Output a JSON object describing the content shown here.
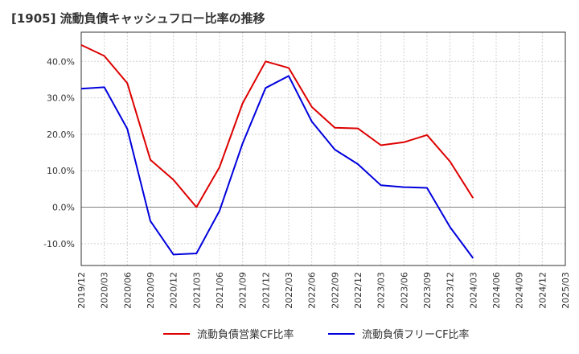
{
  "chart_data": {
    "type": "line",
    "title": "[1905]  流動負債キャッシュフロー比率の推移",
    "xlabel": "",
    "ylabel": "",
    "x": [
      "2019/12",
      "2020/03",
      "2020/06",
      "2020/09",
      "2020/12",
      "2021/03",
      "2021/06",
      "2021/09",
      "2021/12",
      "2022/03",
      "2022/06",
      "2022/09",
      "2022/12",
      "2023/03",
      "2023/06",
      "2023/09",
      "2023/12",
      "2024/03",
      "2024/06",
      "2024/09",
      "2024/12",
      "2025/03"
    ],
    "ylim": [
      -16,
      48
    ],
    "yticks": [
      -10,
      0,
      10,
      20,
      30,
      40
    ],
    "ytick_labels": [
      "-10.0%",
      "0.0%",
      "10.0%",
      "20.0%",
      "30.0%",
      "40.0%"
    ],
    "grid": true,
    "legend_position": "bottom",
    "series": [
      {
        "name": "流動負債営業CF比率",
        "color": "#dd0000",
        "values": [
          44.5,
          41.5,
          34.0,
          13.0,
          7.5,
          0.0,
          11.0,
          28.5,
          40.0,
          38.2,
          27.5,
          21.8,
          21.6,
          17.0,
          17.8,
          19.8,
          12.5,
          2.5,
          null,
          null,
          null,
          null
        ]
      },
      {
        "name": "流動負債フリーCF比率",
        "color": "#0000dd",
        "values": [
          32.5,
          32.9,
          21.5,
          -3.8,
          -13.0,
          -12.7,
          -1.0,
          17.5,
          32.7,
          36.0,
          23.5,
          15.8,
          11.8,
          6.0,
          5.5,
          5.3,
          -5.5,
          -14.0,
          null,
          null,
          null,
          null
        ]
      }
    ]
  }
}
